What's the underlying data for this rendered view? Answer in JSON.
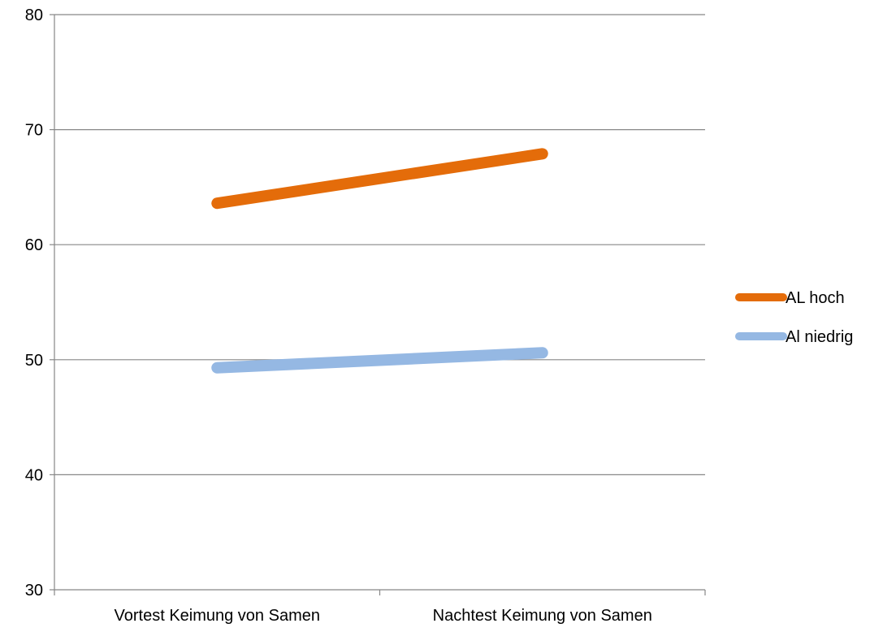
{
  "chart_data": {
    "type": "line",
    "title": "",
    "xlabel": "",
    "ylabel": "",
    "categories": [
      "Vortest Keimung von Samen",
      "Nachtest Keimung von Samen"
    ],
    "ylim": [
      30,
      80
    ],
    "yticks": [
      30,
      40,
      50,
      60,
      70,
      80
    ],
    "grid": true,
    "legend_position": "right",
    "series": [
      {
        "name": "AL hoch",
        "values": [
          63.6,
          67.9
        ],
        "color": "#e46c0a"
      },
      {
        "name": "Al niedrig",
        "values": [
          49.3,
          50.6
        ],
        "color": "#95b8e3"
      }
    ]
  }
}
